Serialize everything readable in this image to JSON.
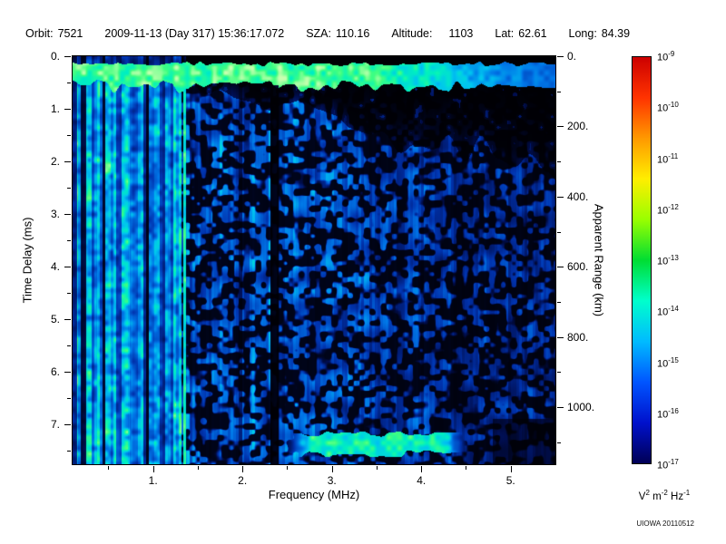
{
  "header": {
    "items": [
      {
        "label": "Orbit:",
        "value": "7521"
      },
      {
        "label": "",
        "value": "2009-11-13 (Day 317) 15:36:17.072"
      },
      {
        "label": "SZA:",
        "value": "110.16"
      },
      {
        "label": "Altitude:",
        "value": "1103"
      },
      {
        "label": "Lat:",
        "value": "62.61"
      },
      {
        "label": "Long:",
        "value": "84.39"
      }
    ]
  },
  "chart_data": {
    "type": "heatmap",
    "title": "",
    "xlabel": "Frequency (MHz)",
    "ylabel": "Time Delay (ms)",
    "ylabel_right": "Apparent Range (km)",
    "x_range_mhz": [
      0.1,
      5.5
    ],
    "x_tick_values": [
      1,
      2,
      3,
      4,
      5
    ],
    "x_tick_labels": [
      "1.",
      "2.",
      "3.",
      "4.",
      "5."
    ],
    "x_minor_step": 0.5,
    "y_range_ms": [
      0,
      7.75
    ],
    "y_tick_values": [
      0,
      1,
      2,
      3,
      4,
      5,
      6,
      7
    ],
    "y_tick_labels": [
      "0.",
      "1.",
      "2.",
      "3.",
      "4.",
      "5.",
      "6.",
      "7."
    ],
    "y_minor_step": 0.5,
    "right_axis_km_per_ms": 150,
    "right_tick_values_km": [
      0,
      200,
      400,
      600,
      800,
      1000
    ],
    "right_tick_labels": [
      "0.",
      "200.",
      "400.",
      "600.",
      "800.",
      "1000."
    ],
    "right_minor_step_km": 100,
    "colorbar": {
      "scale": "log10",
      "tick_exponents": [
        -9,
        -10,
        -11,
        -12,
        -13,
        -14,
        -15,
        -16,
        -17
      ],
      "unit_parts": [
        {
          "text": "V",
          "sup": "2"
        },
        {
          "text": "m",
          "sup": "-2"
        },
        {
          "text": "Hz",
          "sup": "-1"
        }
      ],
      "colors_top_to_bottom": [
        "#cc0000",
        "#ff3300",
        "#ff9900",
        "#ffee00",
        "#99ff00",
        "#00dd33",
        "#00ffcc",
        "#00bbff",
        "#0055ff",
        "#0011cc",
        "#000055"
      ]
    },
    "heatmap_colormap": [
      {
        "v": 0.0,
        "color": "#000004"
      },
      {
        "v": 0.13,
        "color": "#000e50"
      },
      {
        "v": 0.3,
        "color": "#0034b0"
      },
      {
        "v": 0.47,
        "color": "#0077e8"
      },
      {
        "v": 0.62,
        "color": "#00c4f0"
      },
      {
        "v": 0.75,
        "color": "#00f0c0"
      },
      {
        "v": 0.87,
        "color": "#40ff80"
      },
      {
        "v": 1.0,
        "color": "#c8ffb0"
      }
    ],
    "features_params": {
      "striping_max_mhz": 1.32,
      "bright_line_mhz": 1.35,
      "dark_gap_mhz": 2.36,
      "dark_gap2_mhz": 1.98,
      "echo_band_ms": [
        0.14,
        0.42
      ],
      "bottom_echo_mhz": [
        2.45,
        4.55
      ],
      "bottom_echo_ms": [
        7.12,
        7.48
      ]
    },
    "features": [
      "Strong vertical cyan/green plasma-oscillation striping below ~1.3 MHz spanning the full time-delay range",
      "Bright horizontal echo band near 0.2-0.5 ms across all frequencies, dimming toward high frequency",
      "Mostly black (no signal) region at upper right above the echo envelope, deepening with frequency",
      "Diffuse blue speckled noise filling mid and lower delays, weakening toward higher frequency",
      "Dark vertical gap near 2.35 MHz and a fainter one near 2.0 MHz",
      "Bright horizontal echo segment near 7.1-7.5 ms between ~2.5 and ~4.5 MHz",
      "Dark patch in the bottom-right corner beyond ~4.8 MHz"
    ]
  },
  "footer": {
    "credit": "UIOWA 20110512"
  }
}
